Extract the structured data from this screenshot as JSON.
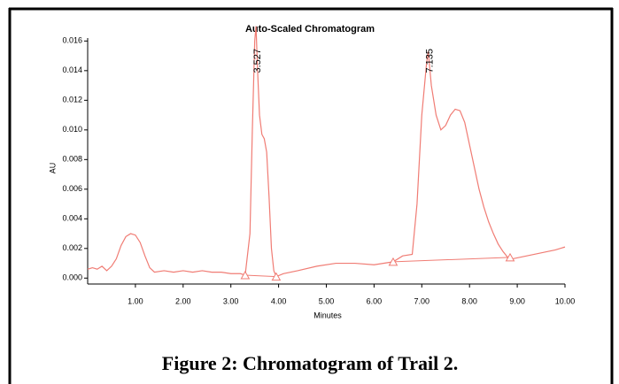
{
  "chart_data": {
    "type": "line",
    "title": "Auto-Scaled Chromatogram",
    "x_label": "Minutes",
    "y_label": "AU",
    "caption": "Figure 2:  Chromatogram of Trail 2.",
    "color": "#f07c74",
    "x": [
      0.0,
      0.1,
      0.2,
      0.3,
      0.4,
      0.5,
      0.6,
      0.7,
      0.8,
      0.9,
      1.0,
      1.1,
      1.2,
      1.3,
      1.4,
      1.6,
      1.8,
      2.0,
      2.2,
      2.4,
      2.6,
      2.8,
      3.0,
      3.2,
      3.3,
      3.4,
      3.45,
      3.5,
      3.527,
      3.56,
      3.6,
      3.65,
      3.7,
      3.75,
      3.8,
      3.85,
      3.9,
      3.95,
      4.1,
      4.4,
      4.8,
      5.2,
      5.6,
      6.0,
      6.4,
      6.6,
      6.8,
      6.9,
      7.0,
      7.1,
      7.135,
      7.2,
      7.3,
      7.4,
      7.5,
      7.6,
      7.7,
      7.8,
      7.9,
      8.0,
      8.1,
      8.2,
      8.3,
      8.4,
      8.5,
      8.6,
      8.7,
      8.8,
      8.9,
      9.2,
      9.5,
      9.8,
      10.0
    ],
    "values": [
      0.0006,
      0.0007,
      0.0006,
      0.0008,
      0.0005,
      0.0008,
      0.0013,
      0.0022,
      0.0028,
      0.003,
      0.0029,
      0.0024,
      0.0015,
      0.0007,
      0.0004,
      0.0005,
      0.0004,
      0.0005,
      0.0004,
      0.0005,
      0.0004,
      0.0004,
      0.0003,
      0.0003,
      0.0002,
      0.003,
      0.01,
      0.016,
      0.017,
      0.014,
      0.011,
      0.0097,
      0.0094,
      0.0085,
      0.0055,
      0.002,
      0.0005,
      0.0001,
      0.0003,
      0.0005,
      0.0008,
      0.001,
      0.001,
      0.0009,
      0.0011,
      0.0015,
      0.0016,
      0.005,
      0.011,
      0.0145,
      0.0153,
      0.013,
      0.011,
      0.01,
      0.0103,
      0.011,
      0.0114,
      0.0113,
      0.0105,
      0.009,
      0.0075,
      0.006,
      0.0048,
      0.0038,
      0.003,
      0.0023,
      0.0018,
      0.0014,
      0.0013,
      0.0015,
      0.0017,
      0.0019,
      0.0021
    ],
    "baseline_markers": {
      "x": [
        3.3,
        3.95,
        6.4,
        8.85
      ],
      "values": [
        0.0002,
        0.0001,
        0.0011,
        0.0014
      ]
    },
    "annotations": [
      {
        "label": "3.527",
        "x": 3.527
      },
      {
        "label": "7.135",
        "x": 7.135
      }
    ],
    "xlim": [
      0,
      10
    ],
    "ylim": [
      -0.0004,
      0.0162
    ],
    "xticks": [
      {
        "value": 1,
        "label": "1.00"
      },
      {
        "value": 2,
        "label": "2.00"
      },
      {
        "value": 3,
        "label": "3.00"
      },
      {
        "value": 4,
        "label": "4.00"
      },
      {
        "value": 5,
        "label": "5.00"
      },
      {
        "value": 6,
        "label": "6.00"
      },
      {
        "value": 7,
        "label": "7.00"
      },
      {
        "value": 8,
        "label": "8.00"
      },
      {
        "value": 9,
        "label": "9.00"
      },
      {
        "value": 10,
        "label": "10.00"
      }
    ],
    "yticks": [
      {
        "value": 0,
        "label": "0.000"
      },
      {
        "value": 0.002,
        "label": "0.002"
      },
      {
        "value": 0.004,
        "label": "0.004"
      },
      {
        "value": 0.006,
        "label": "0.006"
      },
      {
        "value": 0.008,
        "label": "0.008"
      },
      {
        "value": 0.01,
        "label": "0.010"
      },
      {
        "value": 0.012,
        "label": "0.012"
      },
      {
        "value": 0.014,
        "label": "0.014"
      },
      {
        "value": 0.016,
        "label": "0.016"
      }
    ]
  }
}
